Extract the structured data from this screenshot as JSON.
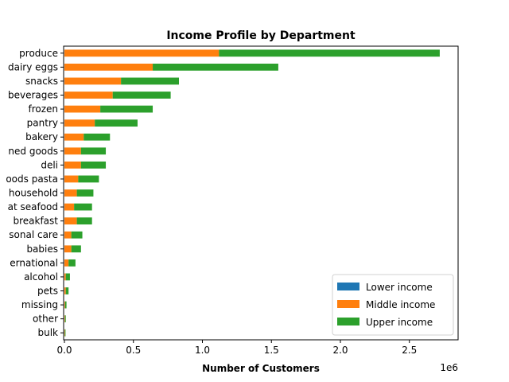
{
  "chart_data": {
    "type": "bar",
    "orientation": "horizontal",
    "stacked": true,
    "title": "Income Profile by Department",
    "xlabel": "Number of Customers",
    "ylabel": "",
    "x_offset_label": "1e6",
    "x_scale_note": "values in millions",
    "xlim": [
      0,
      2.85
    ],
    "xticks": [
      0.0,
      0.5,
      1.0,
      1.5,
      2.0,
      2.5
    ],
    "xtick_labels": [
      "0.0",
      "0.5",
      "1.0",
      "1.5",
      "2.0",
      "2.5"
    ],
    "grid": false,
    "legend_position": "lower-right",
    "categories": [
      "produce",
      "dairy eggs",
      "snacks",
      "beverages",
      "frozen",
      "pantry",
      "bakery",
      "canned goods",
      "deli",
      "dry goods pasta",
      "household",
      "meat seafood",
      "breakfast",
      "personal care",
      "babies",
      "international",
      "alcohol",
      "pets",
      "missing",
      "other",
      "bulk"
    ],
    "category_labels_visible": [
      "produce",
      "dairy eggs",
      "snacks",
      "beverages",
      "frozen",
      "pantry",
      "bakery",
      "ned goods",
      "deli",
      "oods pasta",
      "household",
      "at seafood",
      "breakfast",
      "sonal care",
      "babies",
      "ernational",
      "alcohol",
      "pets",
      "missing",
      "other",
      "bulk"
    ],
    "series": [
      {
        "name": "Lower income",
        "color": "#1f77b4",
        "values": [
          0,
          0,
          0,
          0,
          0,
          0,
          0,
          0,
          0,
          0,
          0,
          0,
          0,
          0,
          0,
          0,
          0,
          0,
          0,
          0,
          0
        ]
      },
      {
        "name": "Middle income",
        "color": "#ff7f0e",
        "values": [
          1.12,
          0.64,
          0.41,
          0.35,
          0.26,
          0.22,
          0.14,
          0.12,
          0.12,
          0.1,
          0.09,
          0.07,
          0.09,
          0.05,
          0.05,
          0.03,
          0.01,
          0.01,
          0.005,
          0.004,
          0.003
        ]
      },
      {
        "name": "Upper income",
        "color": "#2ca02c",
        "values": [
          1.6,
          0.91,
          0.42,
          0.42,
          0.38,
          0.31,
          0.19,
          0.18,
          0.18,
          0.15,
          0.12,
          0.13,
          0.11,
          0.08,
          0.07,
          0.05,
          0.03,
          0.02,
          0.01,
          0.006,
          0.005
        ]
      }
    ]
  }
}
